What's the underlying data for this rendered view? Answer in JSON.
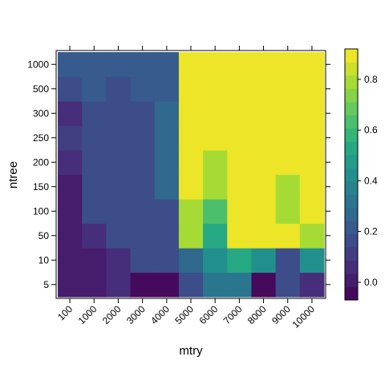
{
  "chart_data": {
    "type": "heatmap",
    "xlabel": "mtry",
    "ylabel": "ntree",
    "x_categories": [
      "100",
      "1000",
      "2000",
      "3000",
      "4000",
      "5000",
      "6000",
      "7000",
      "8000",
      "9000",
      "10000"
    ],
    "y_categories": [
      "5",
      "10",
      "50",
      "100",
      "150",
      "200",
      "250",
      "300",
      "500",
      "1000"
    ],
    "values": [
      [
        0.0,
        0.0,
        0.08,
        -0.02,
        -0.02,
        0.17,
        0.33,
        0.33,
        -0.02,
        0.17,
        0.08
      ],
      [
        0.0,
        0.0,
        0.08,
        0.17,
        0.17,
        0.25,
        0.42,
        0.52,
        0.45,
        0.17,
        0.42
      ],
      [
        0.0,
        0.08,
        0.17,
        0.17,
        0.17,
        0.78,
        0.52,
        0.92,
        0.92,
        0.92,
        0.78
      ],
      [
        0.0,
        0.17,
        0.17,
        0.17,
        0.17,
        0.78,
        0.62,
        0.92,
        0.92,
        0.78,
        0.92
      ],
      [
        0.0,
        0.17,
        0.17,
        0.17,
        0.25,
        0.92,
        0.78,
        0.92,
        0.92,
        0.78,
        0.92
      ],
      [
        0.08,
        0.17,
        0.17,
        0.17,
        0.25,
        0.92,
        0.78,
        0.92,
        0.92,
        0.92,
        0.92
      ],
      [
        0.12,
        0.17,
        0.17,
        0.17,
        0.25,
        0.92,
        0.92,
        0.92,
        0.92,
        0.92,
        0.92
      ],
      [
        0.08,
        0.17,
        0.17,
        0.17,
        0.25,
        0.92,
        0.92,
        0.92,
        0.92,
        0.92,
        0.92
      ],
      [
        0.17,
        0.2,
        0.17,
        0.22,
        0.22,
        0.92,
        0.92,
        0.92,
        0.92,
        0.92,
        0.92
      ],
      [
        0.22,
        0.22,
        0.22,
        0.22,
        0.22,
        0.92,
        0.92,
        0.92,
        0.92,
        0.92,
        0.92
      ]
    ],
    "colorbar": {
      "ticks": [
        "0.0",
        "0.2",
        "0.4",
        "0.6",
        "0.8"
      ],
      "tick_values": [
        0.0,
        0.2,
        0.4,
        0.6,
        0.8
      ],
      "range": [
        -0.07,
        0.92
      ],
      "levels": 19
    },
    "palette": [
      "#440154",
      "#472c7a",
      "#3b518b",
      "#2c718e",
      "#21908d",
      "#27ad81",
      "#5cc863",
      "#aadc32",
      "#fde725"
    ],
    "grid": false,
    "legend": "right"
  }
}
